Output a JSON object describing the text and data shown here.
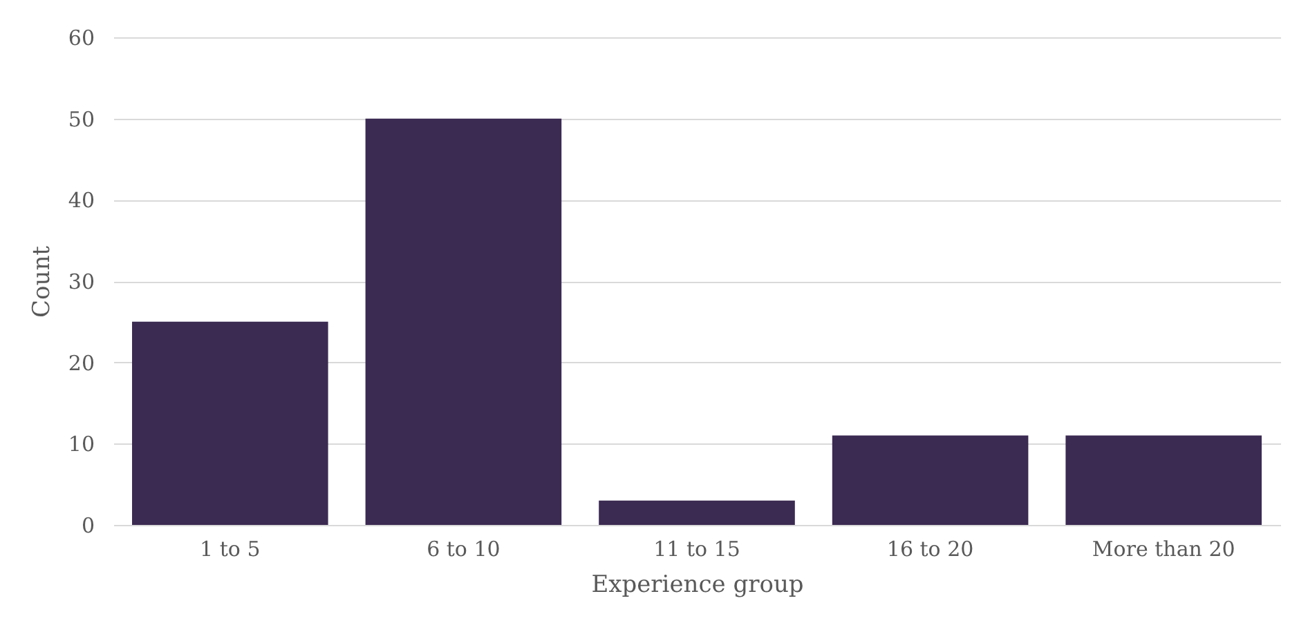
{
  "chart_data": {
    "type": "bar",
    "xlabel": "Experience group",
    "ylabel": "Count",
    "categories": [
      "1 to 5",
      "6 to 10",
      "11 to 15",
      "16 to 20",
      "More than 20"
    ],
    "values": [
      25,
      50,
      3,
      11,
      11
    ],
    "color": "#3b2a52",
    "ylim": [
      0,
      60
    ],
    "yticks": [
      0,
      10,
      20,
      30,
      40,
      50,
      60
    ],
    "grid": "y"
  }
}
